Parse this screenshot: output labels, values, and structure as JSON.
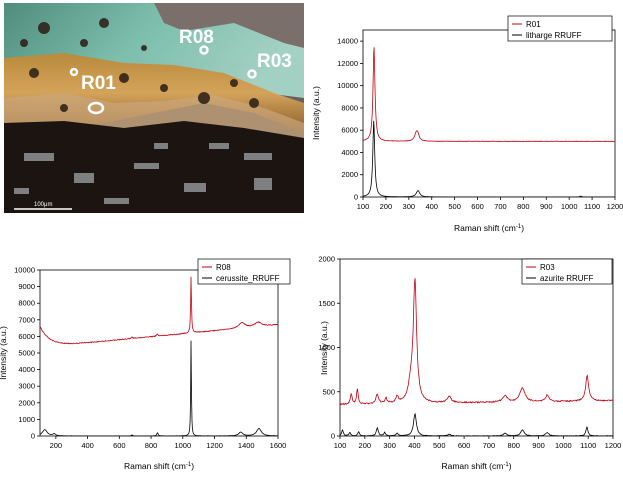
{
  "photo": {
    "labels": [
      "R08",
      "R03",
      "R01"
    ],
    "scale_bar_label": "100μm"
  },
  "chart_data": [
    {
      "type": "line",
      "x_axis": {
        "label": "Raman shift (cm",
        "unit_sup": "-1",
        "label_close": ")",
        "min": 100,
        "max": 1200,
        "ticks": [
          100,
          200,
          300,
          400,
          500,
          600,
          700,
          800,
          900,
          1000,
          1100,
          1200
        ]
      },
      "y_axis": {
        "label": "Intensity (a.u.)",
        "min": 0,
        "max": 15000,
        "ticks": [
          0,
          2000,
          4000,
          6000,
          8000,
          10000,
          12000,
          14000
        ]
      },
      "grid": false,
      "legend_position": "top-right",
      "series": [
        {
          "name": "R01",
          "color": "#c0000f",
          "baseline": 5000,
          "noise": 30,
          "slope": 0,
          "peaks": [
            [
              148,
              8600,
              5
            ],
            [
              333,
              750,
              9
            ],
            [
              340,
              380,
              6
            ]
          ]
        },
        {
          "name": "litharge RRUFF",
          "color": "#000000",
          "baseline": 0,
          "noise": 0,
          "slope": 0,
          "peaks": [
            [
              147,
              6900,
              5
            ],
            [
              340,
              580,
              9
            ],
            [
              1050,
              70,
              5
            ]
          ]
        }
      ]
    },
    {
      "type": "line",
      "x_axis": {
        "label": "Raman shift (cm",
        "unit_sup": "-1",
        "label_close": ")",
        "min": 100,
        "max": 1600,
        "ticks": [
          200,
          400,
          600,
          800,
          1000,
          1200,
          1400,
          1600
        ]
      },
      "y_axis": {
        "label": "Intensity (a.u.)",
        "min": 0,
        "max": 10000,
        "ticks": [
          0,
          1000,
          2000,
          3000,
          4000,
          5000,
          6000,
          7000,
          8000,
          9000,
          10000
        ]
      },
      "grid": false,
      "legend_position": "top-right",
      "series": [
        {
          "name": "R08",
          "color": "#c0000f",
          "baseline": 5350,
          "noise": 45,
          "slope": 0.9,
          "start_rise": [
            1250,
            60
          ],
          "peaks": [
            [
              1052,
              3400,
              3
            ],
            [
              1372,
              320,
              25
            ],
            [
              1475,
              260,
              25
            ],
            [
              840,
              150,
              5
            ],
            [
              680,
              80,
              6
            ]
          ]
        },
        {
          "name": "cerussite_RRUFF",
          "color": "#000000",
          "baseline": 0,
          "noise": 8,
          "slope": 0,
          "peaks": [
            [
              1052,
              5750,
              2.5
            ],
            [
              130,
              380,
              18
            ],
            [
              190,
              120,
              10
            ],
            [
              840,
              200,
              5
            ],
            [
              1365,
              230,
              15
            ],
            [
              1480,
              450,
              18
            ],
            [
              680,
              60,
              5
            ]
          ]
        }
      ]
    },
    {
      "type": "line",
      "x_axis": {
        "label": "Raman shift (cm",
        "unit_sup": "-1",
        "label_close": ")",
        "min": 100,
        "max": 1200,
        "ticks": [
          100,
          200,
          300,
          400,
          500,
          600,
          700,
          800,
          900,
          1000,
          1100,
          1200
        ]
      },
      "y_axis": {
        "label": "Intensity (a.u.)",
        "min": 0,
        "max": 2000,
        "ticks": [
          0,
          500,
          1000,
          1500,
          2000
        ]
      },
      "grid": false,
      "legend_position": "top-right",
      "series": [
        {
          "name": "R03",
          "color": "#c0000f",
          "baseline": 355,
          "noise": 14,
          "slope": 0.04,
          "peaks": [
            [
              402,
              1360,
              8
            ],
            [
              385,
              180,
              12
            ],
            [
              145,
              120,
              4
            ],
            [
              170,
              170,
              4
            ],
            [
              250,
              110,
              6
            ],
            [
              285,
              60,
              5
            ],
            [
              330,
              70,
              6
            ],
            [
              540,
              70,
              10
            ],
            [
              765,
              70,
              12
            ],
            [
              835,
              160,
              12
            ],
            [
              935,
              70,
              8
            ],
            [
              1095,
              240,
              6
            ],
            [
              1100,
              60,
              10
            ]
          ]
        },
        {
          "name": "azurite RRUFF",
          "color": "#000000",
          "baseline": 0,
          "noise": 6,
          "slope": 0,
          "peaks": [
            [
              402,
              250,
              7
            ],
            [
              110,
              70,
              4
            ],
            [
              140,
              40,
              4
            ],
            [
              175,
              50,
              4
            ],
            [
              250,
              90,
              5
            ],
            [
              280,
              40,
              4
            ],
            [
              330,
              30,
              5
            ],
            [
              540,
              20,
              8
            ],
            [
              765,
              30,
              8
            ],
            [
              835,
              70,
              8
            ],
            [
              935,
              40,
              8
            ],
            [
              1095,
              100,
              5
            ]
          ]
        }
      ]
    }
  ]
}
